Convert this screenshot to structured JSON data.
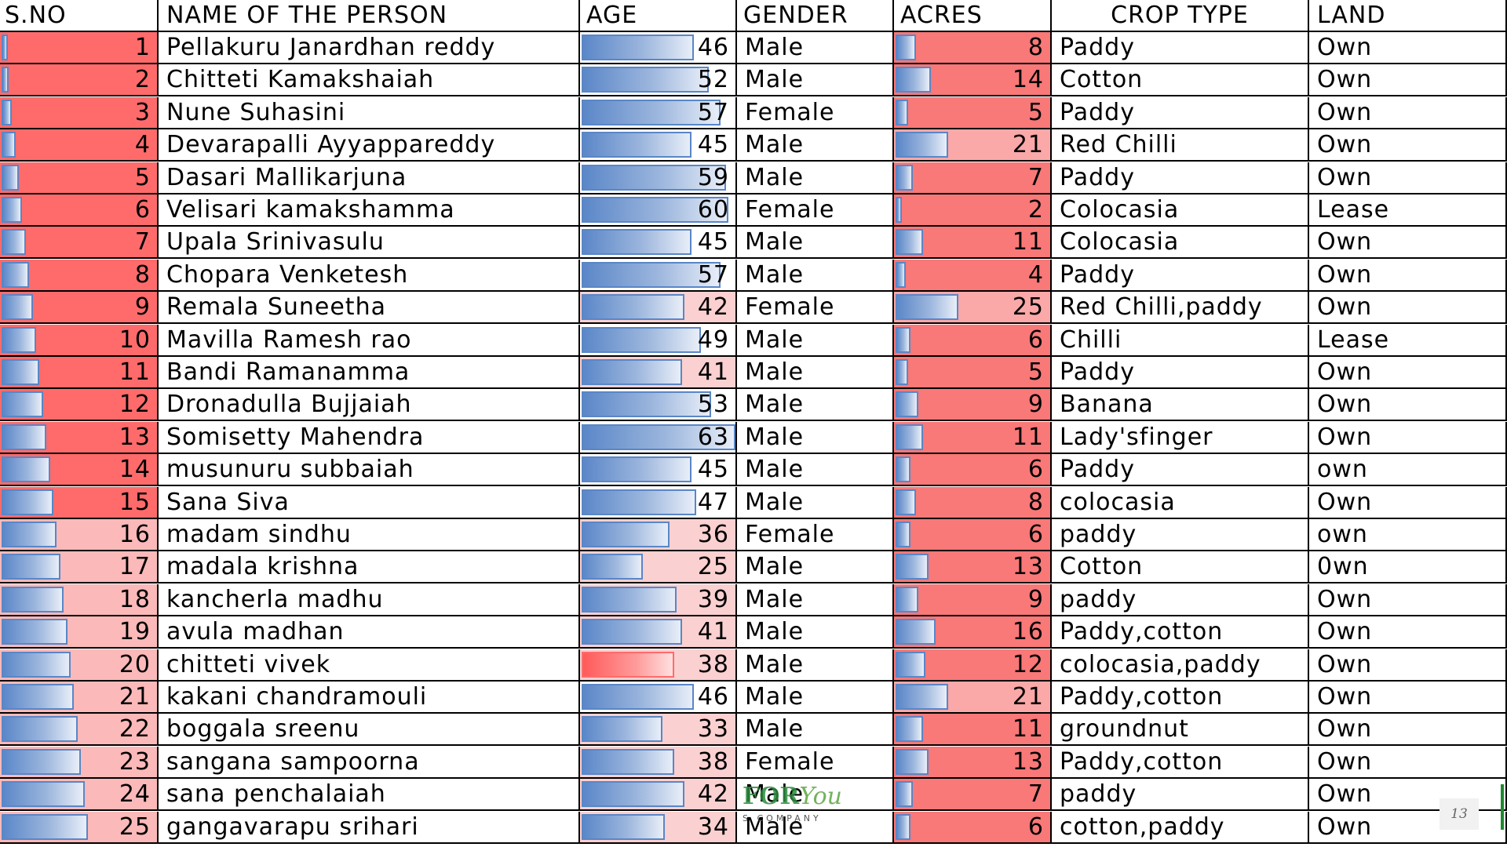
{
  "headers": {
    "sno": "S.NO",
    "name": "NAME OF THE PERSON",
    "age": "AGE",
    "gender": "GENDER",
    "acres": "ACRES",
    "crop": "CROP TYPE",
    "land": "LAND"
  },
  "rows": [
    {
      "sno": "1",
      "name": "Pellakuru Janardhan reddy",
      "age": "46",
      "gender": "Male",
      "acres": "8",
      "crop": "Paddy",
      "land": "Own"
    },
    {
      "sno": "2",
      "name": "Chitteti Kamakshaiah",
      "age": "52",
      "gender": "Male",
      "acres": "14",
      "crop": "Cotton",
      "land": "Own"
    },
    {
      "sno": "3",
      "name": "Nune Suhasini",
      "age": "57",
      "gender": "Female",
      "acres": "5",
      "crop": "Paddy",
      "land": "Own"
    },
    {
      "sno": "4",
      "name": "Devarapalli Ayyappareddy",
      "age": "45",
      "gender": "Male",
      "acres": "21",
      "crop": "Red Chilli",
      "land": "Own"
    },
    {
      "sno": "5",
      "name": "Dasari Mallikarjuna",
      "age": "59",
      "gender": "Male",
      "acres": "7",
      "crop": "Paddy",
      "land": "Own"
    },
    {
      "sno": "6",
      "name": "Velisari kamakshamma",
      "age": "60",
      "gender": "Female",
      "acres": "2",
      "crop": "Colocasia",
      "land": "Lease"
    },
    {
      "sno": "7",
      "name": "Upala Srinivasulu",
      "age": "45",
      "gender": "Male",
      "acres": "11",
      "crop": "Colocasia",
      "land": "Own"
    },
    {
      "sno": "8",
      "name": "Chopara Venketesh",
      "age": "57",
      "gender": "Male",
      "acres": "4",
      "crop": "Paddy",
      "land": "Own"
    },
    {
      "sno": "9",
      "name": "Remala Suneetha",
      "age": "42",
      "gender": "Female",
      "acres": "25",
      "crop": "Red Chilli,paddy",
      "land": "Own"
    },
    {
      "sno": "10",
      "name": "Mavilla Ramesh rao",
      "age": "49",
      "gender": "Male",
      "acres": "6",
      "crop": "Chilli",
      "land": "Lease"
    },
    {
      "sno": "11",
      "name": "Bandi Ramanamma",
      "age": "41",
      "gender": "Male",
      "acres": "5",
      "crop": "Paddy",
      "land": "Own"
    },
    {
      "sno": "12",
      "name": "Dronadulla Bujjaiah",
      "age": "53",
      "gender": "Male",
      "acres": "9",
      "crop": "Banana",
      "land": "Own"
    },
    {
      "sno": "13",
      "name": "Somisetty Mahendra",
      "age": "63",
      "gender": "Male",
      "acres": "11",
      "crop": "Lady'sfinger",
      "land": "Own"
    },
    {
      "sno": "14",
      "name": "musunuru subbaiah",
      "age": "45",
      "gender": "Male",
      "acres": "6",
      "crop": "Paddy",
      "land": "own"
    },
    {
      "sno": "15",
      "name": "Sana Siva",
      "age": "47",
      "gender": "Male",
      "acres": "8",
      "crop": "colocasia",
      "land": "Own"
    },
    {
      "sno": "16",
      "name": " madam sindhu",
      "age": "36",
      "gender": "Female",
      "acres": "6",
      "crop": "paddy",
      "land": "own"
    },
    {
      "sno": "17",
      "name": "madala krishna",
      "age": "25",
      "gender": "Male",
      "acres": "13",
      "crop": "Cotton",
      "land": "0wn"
    },
    {
      "sno": "18",
      "name": "kancherla madhu",
      "age": "39",
      "gender": "Male",
      "acres": "9",
      "crop": "paddy",
      "land": "Own"
    },
    {
      "sno": "19",
      "name": "avula madhan",
      "age": "41",
      "gender": "Male",
      "acres": "16",
      "crop": "Paddy,cotton",
      "land": "Own"
    },
    {
      "sno": "20",
      "name": "chitteti vivek",
      "age": "38",
      "gender": "Male",
      "acres": "12",
      "crop": "colocasia,paddy",
      "land": "Own"
    },
    {
      "sno": "21",
      "name": "kakani chandramouli",
      "age": "46",
      "gender": "Male",
      "acres": "21",
      "crop": "Paddy,cotton",
      "land": "Own"
    },
    {
      "sno": "22",
      "name": "boggala sreenu",
      "age": "33",
      "gender": "Male",
      "acres": "11",
      "crop": "groundnut",
      "land": "Own"
    },
    {
      "sno": "23",
      "name": "sangana sampoorna",
      "age": "38",
      "gender": "Female",
      "acres": "13",
      "crop": "Paddy,cotton",
      "land": "Own"
    },
    {
      "sno": "24",
      "name": "sana penchalaiah",
      "age": "42",
      "gender": "Male",
      "acres": "7",
      "crop": "paddy",
      "land": "Own"
    },
    {
      "sno": "25",
      "name": "gangavarapu srihari",
      "age": "34",
      "gender": "Male",
      "acres": "6",
      "crop": "cotton,paddy",
      "land": "Own"
    }
  ],
  "age_bar_max": 63,
  "acres_bar_max": 25,
  "sno_bar_max": 25,
  "colors": {
    "red_fill": "#ff6b6b",
    "pink_fill": "#fbb9b9",
    "blue_bar": "#5b87c8",
    "grid": "#000000"
  },
  "watermark": {
    "brand_main": "FOR",
    "brand_script": "You",
    "brand_sub": "S COMPANY"
  },
  "slide_number": "13"
}
